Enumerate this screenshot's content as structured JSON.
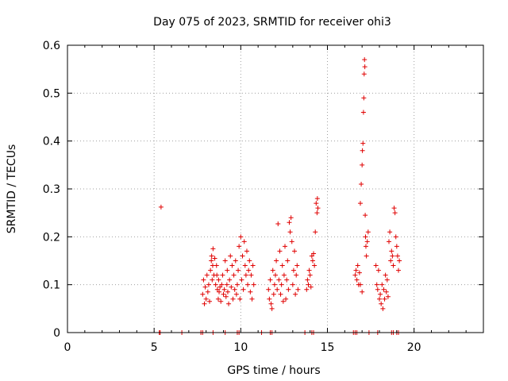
{
  "chart_data": {
    "type": "scatter",
    "title": "Day 075 of 2023, SRMTID for receiver ohi3",
    "xlabel": "GPS time / hours",
    "ylabel": "SRMTID / TECUs",
    "xlim": [
      0,
      24
    ],
    "ylim": [
      0,
      0.6
    ],
    "xticks": [
      0,
      5,
      10,
      15,
      20
    ],
    "xtick_labels": [
      "0",
      "5",
      "10",
      "15",
      "20"
    ],
    "yticks": [
      0,
      0.1,
      0.2,
      0.3,
      0.4,
      0.5,
      0.6
    ],
    "ytick_labels": [
      "0",
      "0.1",
      "0.2",
      "0.3",
      "0.4",
      "0.5",
      "0.6"
    ],
    "grid": true,
    "marker": "+",
    "color": "#e00000",
    "series": [
      {
        "name": "ohi3",
        "points": [
          [
            5.4,
            0.262
          ],
          [
            7.8,
            0.08
          ],
          [
            7.85,
            0.11
          ],
          [
            7.9,
            0.06
          ],
          [
            7.95,
            0.095
          ],
          [
            8.0,
            0.07
          ],
          [
            8.05,
            0.12
          ],
          [
            8.1,
            0.085
          ],
          [
            8.15,
            0.1
          ],
          [
            8.2,
            0.065
          ],
          [
            8.25,
            0.13
          ],
          [
            8.3,
            0.15
          ],
          [
            8.32,
            0.16
          ],
          [
            8.35,
            0.11
          ],
          [
            8.38,
            0.14
          ],
          [
            8.4,
            0.175
          ],
          [
            8.45,
            0.12
          ],
          [
            8.5,
            0.155
          ],
          [
            8.55,
            0.1
          ],
          [
            8.6,
            0.14
          ],
          [
            8.62,
            0.12
          ],
          [
            8.65,
            0.09
          ],
          [
            8.7,
            0.07
          ],
          [
            8.72,
            0.11
          ],
          [
            8.75,
            0.085
          ],
          [
            8.8,
            0.095
          ],
          [
            8.85,
            0.065
          ],
          [
            8.9,
            0.1
          ],
          [
            8.95,
            0.12
          ],
          [
            9.0,
            0.08
          ],
          [
            9.05,
            0.09
          ],
          [
            9.1,
            0.15
          ],
          [
            9.15,
            0.075
          ],
          [
            9.2,
            0.1
          ],
          [
            9.22,
            0.13
          ],
          [
            9.25,
            0.085
          ],
          [
            9.3,
            0.06
          ],
          [
            9.35,
            0.11
          ],
          [
            9.4,
            0.16
          ],
          [
            9.45,
            0.095
          ],
          [
            9.5,
            0.14
          ],
          [
            9.55,
            0.07
          ],
          [
            9.6,
            0.12
          ],
          [
            9.65,
            0.09
          ],
          [
            9.7,
            0.15
          ],
          [
            9.75,
            0.08
          ],
          [
            9.8,
            0.1
          ],
          [
            9.85,
            0.13
          ],
          [
            9.9,
            0.18
          ],
          [
            9.95,
            0.07
          ],
          [
            10.0,
            0.2
          ],
          [
            10.05,
            0.11
          ],
          [
            10.1,
            0.16
          ],
          [
            10.15,
            0.09
          ],
          [
            10.2,
            0.19
          ],
          [
            10.25,
            0.14
          ],
          [
            10.3,
            0.12
          ],
          [
            10.35,
            0.17
          ],
          [
            10.4,
            0.1
          ],
          [
            10.45,
            0.13
          ],
          [
            10.5,
            0.15
          ],
          [
            10.55,
            0.085
          ],
          [
            10.6,
            0.12
          ],
          [
            10.65,
            0.07
          ],
          [
            10.7,
            0.14
          ],
          [
            10.75,
            0.1
          ],
          [
            11.6,
            0.09
          ],
          [
            11.65,
            0.07
          ],
          [
            11.7,
            0.11
          ],
          [
            11.75,
            0.06
          ],
          [
            11.8,
            0.05
          ],
          [
            11.85,
            0.13
          ],
          [
            11.9,
            0.08
          ],
          [
            11.95,
            0.1
          ],
          [
            12.0,
            0.12
          ],
          [
            12.05,
            0.15
          ],
          [
            12.1,
            0.09
          ],
          [
            12.15,
            0.227
          ],
          [
            12.2,
            0.11
          ],
          [
            12.25,
            0.17
          ],
          [
            12.3,
            0.08
          ],
          [
            12.35,
            0.1
          ],
          [
            12.4,
            0.14
          ],
          [
            12.45,
            0.065
          ],
          [
            12.5,
            0.12
          ],
          [
            12.55,
            0.18
          ],
          [
            12.6,
            0.07
          ],
          [
            12.65,
            0.11
          ],
          [
            12.7,
            0.15
          ],
          [
            12.75,
            0.09
          ],
          [
            12.8,
            0.23
          ],
          [
            12.85,
            0.21
          ],
          [
            12.9,
            0.24
          ],
          [
            12.95,
            0.19
          ],
          [
            13.0,
            0.1
          ],
          [
            13.05,
            0.13
          ],
          [
            13.1,
            0.17
          ],
          [
            13.15,
            0.08
          ],
          [
            13.2,
            0.12
          ],
          [
            13.25,
            0.14
          ],
          [
            13.3,
            0.09
          ],
          [
            13.8,
            0.09
          ],
          [
            13.85,
            0.11
          ],
          [
            13.9,
            0.1
          ],
          [
            13.95,
            0.13
          ],
          [
            14.0,
            0.12
          ],
          [
            14.05,
            0.095
          ],
          [
            14.1,
            0.16
          ],
          [
            14.15,
            0.15
          ],
          [
            14.2,
            0.165
          ],
          [
            14.25,
            0.14
          ],
          [
            14.3,
            0.21
          ],
          [
            14.35,
            0.27
          ],
          [
            14.4,
            0.25
          ],
          [
            14.42,
            0.28
          ],
          [
            14.45,
            0.26
          ],
          [
            16.6,
            0.12
          ],
          [
            16.65,
            0.13
          ],
          [
            16.7,
            0.11
          ],
          [
            16.75,
            0.14
          ],
          [
            16.8,
            0.1
          ],
          [
            16.85,
            0.125
          ],
          [
            16.9,
            0.27
          ],
          [
            16.95,
            0.31
          ],
          [
            17.0,
            0.35
          ],
          [
            17.02,
            0.38
          ],
          [
            17.05,
            0.395
          ],
          [
            17.08,
            0.46
          ],
          [
            17.1,
            0.49
          ],
          [
            17.12,
            0.54
          ],
          [
            17.14,
            0.57
          ],
          [
            17.16,
            0.555
          ],
          [
            17.18,
            0.245
          ],
          [
            17.2,
            0.2
          ],
          [
            17.22,
            0.18
          ],
          [
            17.25,
            0.16
          ],
          [
            17.3,
            0.19
          ],
          [
            17.35,
            0.21
          ],
          [
            17.0,
            0.085
          ],
          [
            16.9,
            0.1
          ],
          [
            17.8,
            0.14
          ],
          [
            17.85,
            0.1
          ],
          [
            17.9,
            0.09
          ],
          [
            17.95,
            0.13
          ],
          [
            18.0,
            0.07
          ],
          [
            18.05,
            0.08
          ],
          [
            18.1,
            0.06
          ],
          [
            18.15,
            0.1
          ],
          [
            18.2,
            0.05
          ],
          [
            18.25,
            0.09
          ],
          [
            18.3,
            0.07
          ],
          [
            18.35,
            0.12
          ],
          [
            18.4,
            0.085
          ],
          [
            18.45,
            0.11
          ],
          [
            18.5,
            0.075
          ],
          [
            18.55,
            0.19
          ],
          [
            18.6,
            0.21
          ],
          [
            18.65,
            0.15
          ],
          [
            18.7,
            0.17
          ],
          [
            18.75,
            0.16
          ],
          [
            18.8,
            0.14
          ],
          [
            18.85,
            0.26
          ],
          [
            18.9,
            0.25
          ],
          [
            18.95,
            0.2
          ],
          [
            19.0,
            0.18
          ],
          [
            19.05,
            0.16
          ],
          [
            19.1,
            0.13
          ],
          [
            19.15,
            0.15
          ]
        ],
        "zero_points": [
          5.3,
          5.35,
          6.6,
          7.7,
          7.8,
          8.4,
          9.1,
          9.8,
          9.9,
          11.2,
          11.7,
          11.8,
          13.7,
          14.1,
          14.2,
          16.5,
          16.6,
          16.7,
          17.4,
          17.9,
          18.7,
          18.8,
          19.0,
          19.1
        ]
      }
    ]
  }
}
